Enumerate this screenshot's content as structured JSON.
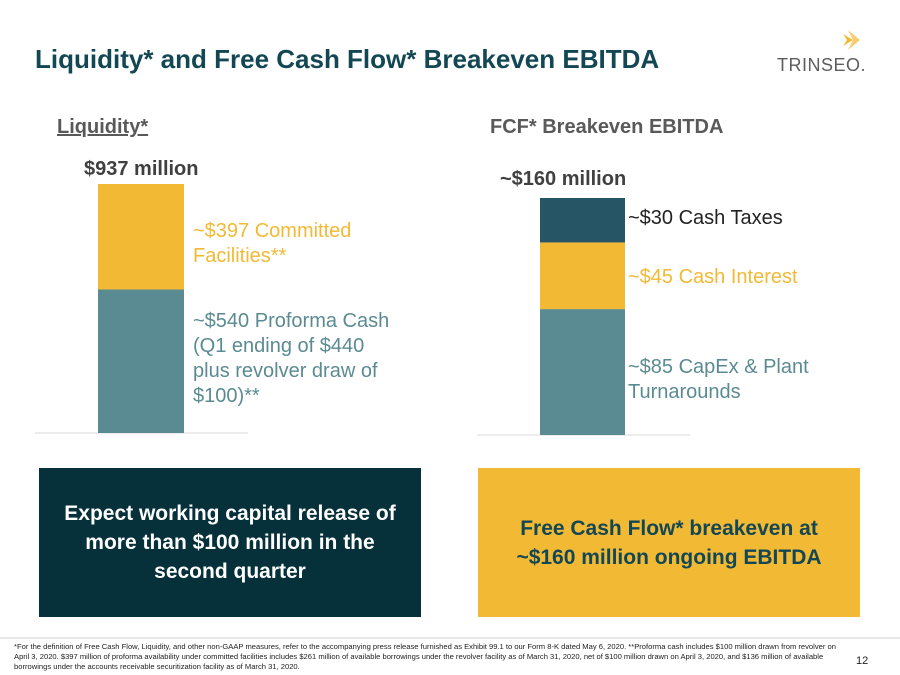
{
  "header": {
    "title": "Liquidity* and Free Cash Flow* Breakeven EBITDA",
    "logo": "TRINSEO."
  },
  "chart_data": [
    {
      "type": "bar",
      "stacked": true,
      "title": "Liquidity*",
      "annotation": "$937 million",
      "series": [
        {
          "name": "~$540 Proforma Cash (Q1 ending of $440 plus revolver draw of $100)**",
          "color": "#5b8b92",
          "values": [
            540
          ]
        },
        {
          "name": "~$397 Committed Facilities**",
          "color": "#f2b935",
          "values": [
            397
          ]
        }
      ]
    },
    {
      "type": "bar",
      "stacked": true,
      "title": "FCF* Breakeven EBITDA",
      "annotation": "~$160 million",
      "series": [
        {
          "name": "~$85 CapEx & Plant Turnarounds",
          "color": "#5b8b92",
          "values": [
            85
          ]
        },
        {
          "name": "~$45 Cash Interest",
          "color": "#f2b935",
          "values": [
            45
          ]
        },
        {
          "name": "~$30 Cash Taxes",
          "color": "#265665",
          "values": [
            30
          ]
        }
      ]
    }
  ],
  "boxes": [
    "Expect working capital release of more than $100 million in the second quarter",
    "Free Cash Flow* breakeven at ~$160 million ongoing EBITDA"
  ],
  "footnote": "*For the definition of Free Cash Flow, Liquidity, and other non-GAAP measures, refer to the accompanying press release furnished as Exhibit 99.1 to our Form 8-K dated May 6, 2020. **Proforma cash includes $100 million drawn from revolver on April 3, 2020. $397 million of proforma availability under committed facilities includes $261 million of available borrowings under the revolver facility as of March 31, 2020, net of $100 million drawn on April 3, 2020, and $136 million of available borrowings under the accounts receivable securitization facility as of March 31, 2020.",
  "page_number": "12"
}
